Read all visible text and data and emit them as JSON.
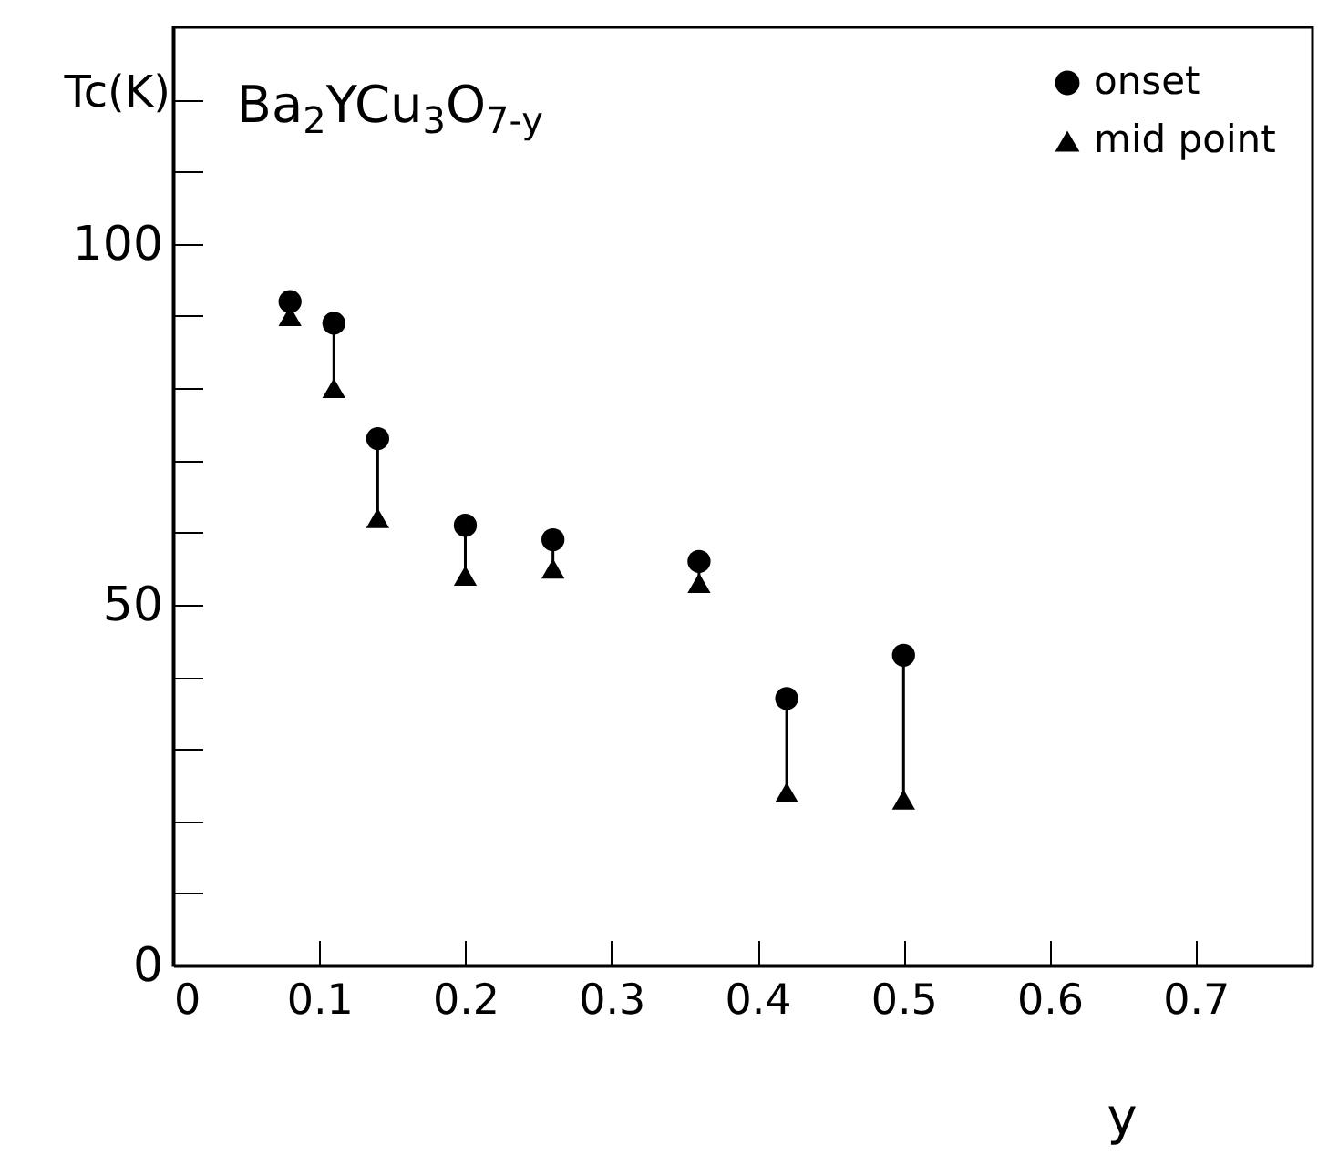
{
  "chart_data": {
    "type": "scatter",
    "title": "Ba$_{2}$YCu$_{3}$O$_{7-y}$",
    "xlabel": "y",
    "ylabel": "Tc(K)",
    "x": [
      0.08,
      0.11,
      0.14,
      0.2,
      0.26,
      0.36,
      0.42,
      0.5
    ],
    "series": [
      {
        "name": "onset",
        "color": "#000000",
        "marker": "circle",
        "values": [
          92,
          89,
          73,
          61,
          59,
          56,
          37,
          43
        ],
        "errors": [
          [
            90,
            92
          ],
          [
            80,
            89
          ],
          [
            62,
            73
          ],
          [
            54,
            61
          ],
          [
            55,
            59
          ],
          [
            53,
            56
          ],
          [
            24,
            37
          ],
          [
            23,
            43
          ]
        ]
      },
      {
        "name": "mid point",
        "color": "#000000",
        "marker": "triangle",
        "values": [
          90,
          80,
          62,
          54,
          55,
          53,
          24,
          23
        ]
      }
    ],
    "xlim": [
      0,
      0.78
    ],
    "xticks": [
      0,
      0.1,
      0.2,
      0.3,
      0.4,
      0.5,
      0.6,
      0.7
    ],
    "ylim": [
      0,
      130
    ],
    "yticks": [
      0,
      {
        "value": 10,
        "label": null
      },
      {
        "value": 20,
        "label": null
      },
      {
        "value": 30,
        "label": null
      },
      {
        "value": 40,
        "label": null
      },
      50,
      {
        "value": 60,
        "label": null
      },
      {
        "value": 70,
        "label": null
      },
      {
        "value": 80,
        "label": null
      },
      {
        "value": 90,
        "label": null
      },
      100,
      {
        "value": 110,
        "label": null
      },
      {
        "value": 120,
        "label": null
      }
    ],
    "grid": false,
    "legend": "top right"
  }
}
